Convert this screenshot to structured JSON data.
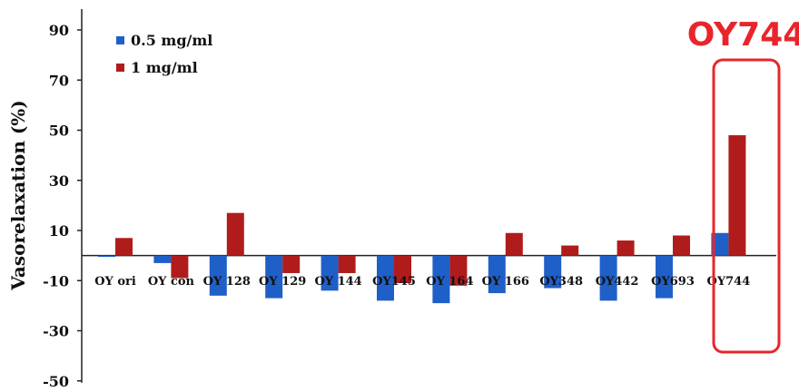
{
  "chart_data": {
    "type": "bar",
    "title": "",
    "xlabel": "",
    "ylabel": "Vasorelaxation  (%)",
    "categories": [
      "OY ori",
      "OY con",
      "OY 128",
      "OY 129",
      "OY 144",
      "OY145",
      "OY 164",
      "OY 166",
      "OY348",
      "OY442",
      "OY693",
      "OY744"
    ],
    "series": [
      {
        "name": "0.5 mg/ml",
        "color": "#1f5fc8",
        "values": [
          0,
          -3,
          -16,
          -17,
          -14,
          -18,
          -19,
          -15,
          -13,
          -18,
          -17,
          9
        ]
      },
      {
        "name": "1 mg/ml",
        "color": "#b01c1c",
        "values": [
          7,
          -9,
          17,
          -7,
          -7,
          -11,
          -12,
          9,
          4,
          6,
          8,
          48
        ]
      }
    ],
    "ylim": [
      -50,
      100
    ],
    "yticks": [
      90,
      70,
      50,
      30,
      10,
      -10,
      -30,
      -50
    ],
    "grid": false,
    "legend_position": "top-left",
    "highlight": {
      "label": "OY744",
      "category": "OY744",
      "color": "#e8252b"
    }
  }
}
